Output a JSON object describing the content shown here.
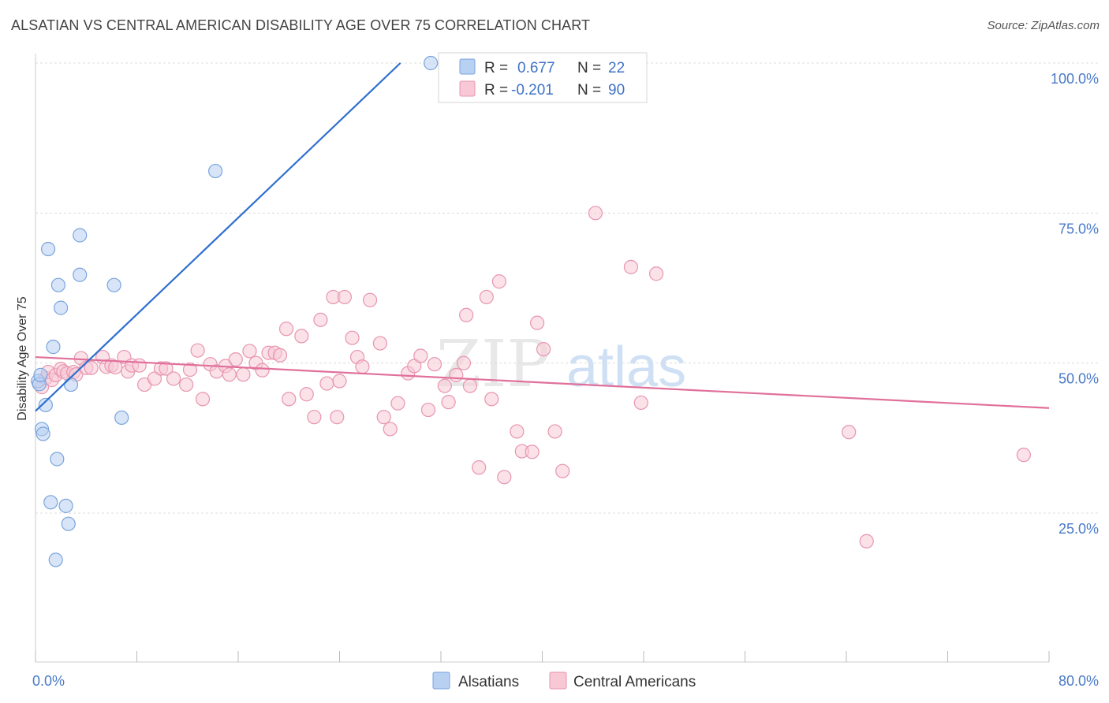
{
  "header": {
    "title": "ALSATIAN VS CENTRAL AMERICAN DISABILITY AGE OVER 75 CORRELATION CHART",
    "source": "Source: ZipAtlas.com"
  },
  "colors": {
    "blue_fill": "#b8d0f2",
    "blue_stroke": "#7aa4dc",
    "blue_line": "#2f6fd0",
    "pink_fill": "#f8c8d6",
    "pink_stroke": "#e796b0",
    "pink_line": "#e0709a",
    "grid": "#dcdcdc",
    "tick_text": "#4a7ac8"
  },
  "watermark": {
    "zip": "ZIP",
    "atlas": "atlas"
  },
  "legend": {
    "rows": [
      {
        "r_label": "R =",
        "r_value": "0.677",
        "n_label": "N =",
        "n_value": "22"
      },
      {
        "r_label": "R =",
        "r_value": "-0.201",
        "n_label": "N =",
        "n_value": "90"
      }
    ]
  },
  "chart_data": {
    "type": "scatter",
    "title": "ALSATIAN VS CENTRAL AMERICAN DISABILITY AGE OVER 75 CORRELATION CHART",
    "xlabel": "",
    "ylabel": "Disability Age Over 75",
    "xlim": [
      0,
      80
    ],
    "ylim": [
      0,
      105
    ],
    "x_ticks": [
      0,
      8,
      16,
      24,
      32,
      40,
      48,
      56,
      64,
      72,
      80
    ],
    "x_tick_labels": {
      "0": "0.0%",
      "80": "80.0%"
    },
    "y_ticks": [
      25,
      50,
      75,
      100
    ],
    "y_tick_labels": [
      "25.0%",
      "50.0%",
      "75.0%",
      "100.0%"
    ],
    "grid": true,
    "legend_position": "top-center",
    "series": [
      {
        "name": "Alsatians",
        "R": 0.677,
        "N": 22,
        "trend": {
          "x0": 0.0,
          "y0": 42.0,
          "x1": 28.8,
          "y1": 100.0
        },
        "points": [
          [
            0.2,
            47.0
          ],
          [
            0.3,
            46.5
          ],
          [
            0.4,
            48.0
          ],
          [
            0.5,
            39.0
          ],
          [
            0.6,
            38.2
          ],
          [
            0.8,
            43.0
          ],
          [
            1.0,
            69.0
          ],
          [
            1.4,
            52.7
          ],
          [
            1.6,
            17.2
          ],
          [
            1.7,
            34.0
          ],
          [
            1.8,
            63.0
          ],
          [
            2.0,
            59.2
          ],
          [
            1.2,
            26.8
          ],
          [
            2.4,
            26.2
          ],
          [
            2.6,
            23.2
          ],
          [
            2.8,
            46.4
          ],
          [
            3.5,
            71.3
          ],
          [
            3.5,
            64.7
          ],
          [
            6.2,
            63.0
          ],
          [
            6.8,
            40.9
          ],
          [
            14.2,
            82.0
          ],
          [
            31.2,
            100.0
          ]
        ]
      },
      {
        "name": "Central Americans",
        "R": -0.201,
        "N": 90,
        "trend": {
          "x0": 0.0,
          "y0": 51.0,
          "x1": 80.0,
          "y1": 42.5
        },
        "points": [
          [
            0.5,
            46.0
          ],
          [
            0.8,
            47.5
          ],
          [
            1.0,
            48.5
          ],
          [
            1.3,
            47.2
          ],
          [
            1.6,
            48.0
          ],
          [
            2.0,
            49.0
          ],
          [
            2.2,
            48.6
          ],
          [
            2.5,
            48.3
          ],
          [
            3.0,
            48.5
          ],
          [
            3.2,
            48.1
          ],
          [
            3.6,
            50.8
          ],
          [
            4.0,
            49.2
          ],
          [
            4.4,
            49.2
          ],
          [
            5.3,
            51.0
          ],
          [
            5.6,
            49.4
          ],
          [
            6.0,
            49.6
          ],
          [
            6.3,
            49.3
          ],
          [
            7.0,
            51.0
          ],
          [
            7.3,
            48.6
          ],
          [
            7.6,
            49.6
          ],
          [
            8.2,
            49.6
          ],
          [
            8.6,
            46.4
          ],
          [
            9.4,
            47.4
          ],
          [
            9.9,
            49.1
          ],
          [
            10.3,
            49.1
          ],
          [
            10.9,
            47.4
          ],
          [
            11.9,
            46.4
          ],
          [
            12.2,
            48.9
          ],
          [
            12.8,
            52.1
          ],
          [
            13.2,
            44.0
          ],
          [
            13.8,
            49.8
          ],
          [
            14.3,
            48.6
          ],
          [
            15.0,
            49.5
          ],
          [
            15.3,
            48.1
          ],
          [
            15.8,
            50.6
          ],
          [
            16.4,
            48.1
          ],
          [
            16.9,
            52.0
          ],
          [
            17.4,
            50.0
          ],
          [
            17.9,
            48.8
          ],
          [
            18.4,
            51.7
          ],
          [
            18.9,
            51.7
          ],
          [
            19.3,
            51.3
          ],
          [
            19.8,
            55.7
          ],
          [
            20.0,
            44.0
          ],
          [
            21.0,
            54.5
          ],
          [
            21.4,
            44.8
          ],
          [
            22.0,
            41.0
          ],
          [
            22.5,
            57.2
          ],
          [
            23.0,
            46.6
          ],
          [
            23.5,
            61.0
          ],
          [
            23.8,
            41.0
          ],
          [
            24.0,
            47.0
          ],
          [
            24.4,
            61.0
          ],
          [
            25.0,
            54.2
          ],
          [
            25.4,
            51.0
          ],
          [
            25.8,
            49.4
          ],
          [
            26.4,
            60.5
          ],
          [
            27.2,
            53.3
          ],
          [
            27.5,
            41.0
          ],
          [
            28.0,
            39.0
          ],
          [
            28.6,
            43.3
          ],
          [
            29.4,
            48.3
          ],
          [
            29.9,
            49.5
          ],
          [
            30.4,
            51.2
          ],
          [
            31.0,
            42.2
          ],
          [
            31.5,
            49.8
          ],
          [
            32.3,
            46.2
          ],
          [
            32.6,
            43.5
          ],
          [
            33.2,
            48.0
          ],
          [
            33.8,
            50.0
          ],
          [
            34.0,
            58.0
          ],
          [
            34.3,
            46.2
          ],
          [
            35.0,
            32.6
          ],
          [
            35.6,
            61.0
          ],
          [
            36.0,
            44.0
          ],
          [
            36.6,
            63.6
          ],
          [
            37.0,
            31.0
          ],
          [
            38.0,
            38.6
          ],
          [
            38.4,
            35.3
          ],
          [
            39.2,
            35.2
          ],
          [
            39.6,
            56.7
          ],
          [
            40.1,
            52.3
          ],
          [
            41.0,
            38.6
          ],
          [
            41.6,
            32.0
          ],
          [
            44.2,
            75.0
          ],
          [
            47.0,
            66.0
          ],
          [
            47.8,
            43.4
          ],
          [
            49.0,
            64.9
          ],
          [
            64.2,
            38.5
          ],
          [
            78.0,
            34.7
          ],
          [
            65.6,
            20.3
          ]
        ]
      }
    ]
  },
  "bottom_legend": [
    {
      "label": "Alsatians"
    },
    {
      "label": "Central Americans"
    }
  ]
}
